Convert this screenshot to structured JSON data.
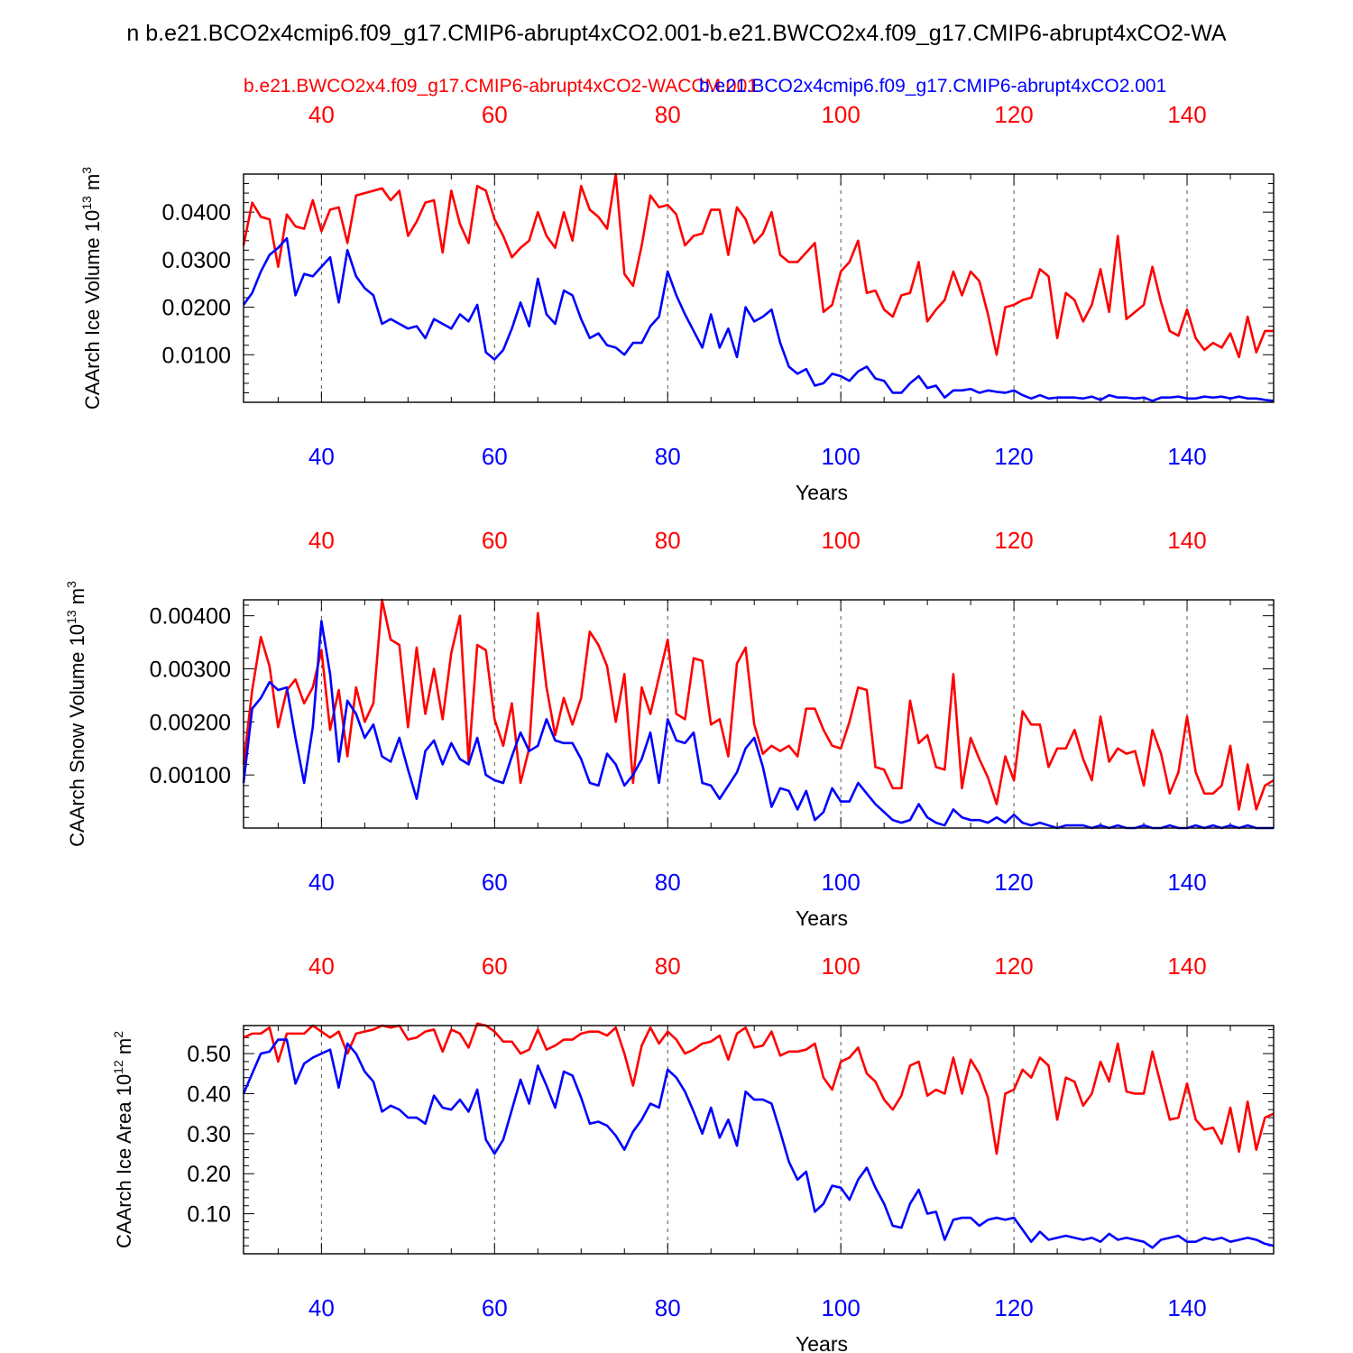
{
  "figure_title": "n b.e21.BCO2x4cmip6.f09_g17.CMIP6-abrupt4xCO2.001-b.e21.BWCO2x4.f09_g17.CMIP6-abrupt4xCO2-WA",
  "legend": {
    "red_label": "b.e21.BWCO2x4.f09_g17.CMIP6-abrupt4xCO2-WACCM.001",
    "blue_label": "b.e21.BCO2x4cmip6.f09_g17.CMIP6-abrupt4xCO2.001"
  },
  "colors": {
    "red": "#ff0000",
    "blue": "#0000ff",
    "axis": "#000000"
  },
  "chart_data": [
    {
      "type": "line",
      "title": "",
      "xlabel": "Years",
      "ylabel": "CAArch Ice Volume 10",
      "ylabel_exp": "13",
      "ylabel_unit": " m",
      "ylabel_unit_exp": "3",
      "xlim": [
        31,
        150
      ],
      "ylim": [
        0.0,
        0.048
      ],
      "xticks": [
        40,
        60,
        80,
        100,
        120,
        140
      ],
      "xtick_labels": [
        "40",
        "60",
        "80",
        "100",
        "120",
        "140"
      ],
      "yticks": [
        0.01,
        0.02,
        0.03,
        0.04
      ],
      "ytick_labels": [
        "0.0100",
        "0.0200",
        "0.0300",
        "0.0400"
      ],
      "grid": "vertical-dashed",
      "x_start": 31,
      "series": [
        {
          "name": "b.e21.BWCO2x4.f09_g17.CMIP6-abrupt4xCO2-WACCM.001",
          "color": "red",
          "values": [
            0.033,
            0.042,
            0.039,
            0.0385,
            0.0285,
            0.0395,
            0.037,
            0.0365,
            0.0425,
            0.036,
            0.0405,
            0.041,
            0.0335,
            0.0435,
            0.044,
            0.0445,
            0.045,
            0.0425,
            0.0445,
            0.035,
            0.038,
            0.042,
            0.0425,
            0.0315,
            0.0445,
            0.0375,
            0.0335,
            0.0455,
            0.0445,
            0.0385,
            0.035,
            0.0305,
            0.0325,
            0.034,
            0.04,
            0.035,
            0.0325,
            0.04,
            0.034,
            0.0455,
            0.0405,
            0.039,
            0.0365,
            0.048,
            0.027,
            0.0245,
            0.033,
            0.0435,
            0.041,
            0.0415,
            0.0395,
            0.033,
            0.035,
            0.0355,
            0.0405,
            0.0405,
            0.031,
            0.041,
            0.0385,
            0.0335,
            0.0355,
            0.04,
            0.031,
            0.0295,
            0.0295,
            0.0315,
            0.0335,
            0.019,
            0.0205,
            0.0275,
            0.0295,
            0.034,
            0.023,
            0.0235,
            0.0195,
            0.018,
            0.0225,
            0.023,
            0.0295,
            0.017,
            0.0195,
            0.0215,
            0.0275,
            0.0225,
            0.0275,
            0.0255,
            0.0185,
            0.01,
            0.02,
            0.0205,
            0.0215,
            0.022,
            0.028,
            0.0265,
            0.0135,
            0.023,
            0.0215,
            0.017,
            0.0205,
            0.028,
            0.019,
            0.035,
            0.0175,
            0.019,
            0.0205,
            0.0285,
            0.021,
            0.015,
            0.014,
            0.0195,
            0.0135,
            0.011,
            0.0125,
            0.0115,
            0.0145,
            0.0095,
            0.018,
            0.0105,
            0.015,
            0.015
          ]
        },
        {
          "name": "b.e21.BCO2x4cmip6.f09_g17.CMIP6-abrupt4xCO2.001",
          "color": "blue",
          "values": [
            0.0205,
            0.023,
            0.0275,
            0.031,
            0.0325,
            0.0345,
            0.0225,
            0.027,
            0.0265,
            0.0285,
            0.0305,
            0.021,
            0.032,
            0.0265,
            0.024,
            0.0225,
            0.0165,
            0.0175,
            0.0165,
            0.0155,
            0.016,
            0.0135,
            0.0175,
            0.0165,
            0.0155,
            0.0185,
            0.017,
            0.0205,
            0.0105,
            0.009,
            0.011,
            0.0155,
            0.021,
            0.016,
            0.026,
            0.0185,
            0.0165,
            0.0235,
            0.0225,
            0.0175,
            0.0135,
            0.0145,
            0.012,
            0.0115,
            0.01,
            0.0125,
            0.0125,
            0.016,
            0.018,
            0.0275,
            0.0225,
            0.0185,
            0.015,
            0.0115,
            0.0185,
            0.0115,
            0.0155,
            0.0095,
            0.02,
            0.017,
            0.018,
            0.0195,
            0.0125,
            0.0075,
            0.006,
            0.007,
            0.0035,
            0.004,
            0.006,
            0.0055,
            0.0045,
            0.0065,
            0.0075,
            0.005,
            0.0045,
            0.002,
            0.002,
            0.004,
            0.0055,
            0.003,
            0.0035,
            0.001,
            0.0025,
            0.0025,
            0.0028,
            0.002,
            0.0025,
            0.0022,
            0.002,
            0.0025,
            0.0015,
            0.0008,
            0.0015,
            0.0008,
            0.001,
            0.001,
            0.001,
            0.0008,
            0.0012,
            0.0005,
            0.0015,
            0.001,
            0.001,
            0.0008,
            0.001,
            0.0003,
            0.001,
            0.001,
            0.0012,
            0.0008,
            0.0008,
            0.0012,
            0.001,
            0.0012,
            0.0008,
            0.0012,
            0.0008,
            0.0008,
            0.0005,
            0.0003
          ]
        }
      ]
    },
    {
      "type": "line",
      "title": "",
      "xlabel": "Years",
      "ylabel": "CAArch Snow Volume 10",
      "ylabel_exp": "13",
      "ylabel_unit": " m",
      "ylabel_unit_exp": "3",
      "xlim": [
        31,
        150
      ],
      "ylim": [
        0.0,
        0.0043
      ],
      "xticks": [
        40,
        60,
        80,
        100,
        120,
        140
      ],
      "xtick_labels": [
        "40",
        "60",
        "80",
        "100",
        "120",
        "140"
      ],
      "yticks": [
        0.001,
        0.002,
        0.003,
        0.004
      ],
      "ytick_labels": [
        "0.00100",
        "0.00200",
        "0.00300",
        "0.00400"
      ],
      "grid": "vertical-dashed",
      "x_start": 31,
      "series": [
        {
          "name": "b.e21.BWCO2x4.f09_g17.CMIP6-abrupt4xCO2-WACCM.001",
          "color": "red",
          "values": [
            0.0012,
            0.0026,
            0.0036,
            0.00305,
            0.0019,
            0.0026,
            0.0028,
            0.00235,
            0.00265,
            0.00335,
            0.00185,
            0.0026,
            0.00135,
            0.00265,
            0.002,
            0.00235,
            0.0043,
            0.00355,
            0.00345,
            0.0019,
            0.0034,
            0.00215,
            0.003,
            0.00205,
            0.0033,
            0.004,
            0.00125,
            0.00345,
            0.00335,
            0.00205,
            0.00155,
            0.00235,
            0.00085,
            0.0015,
            0.00405,
            0.00265,
            0.00175,
            0.00245,
            0.00195,
            0.00245,
            0.0037,
            0.00345,
            0.00305,
            0.002,
            0.0029,
            0.00085,
            0.00265,
            0.00215,
            0.00285,
            0.00355,
            0.00215,
            0.00205,
            0.0032,
            0.00315,
            0.00195,
            0.00205,
            0.00135,
            0.0031,
            0.0034,
            0.00195,
            0.0014,
            0.00155,
            0.00145,
            0.00155,
            0.00135,
            0.00225,
            0.00225,
            0.00185,
            0.00155,
            0.0015,
            0.002,
            0.00265,
            0.0026,
            0.00115,
            0.0011,
            0.00075,
            0.00075,
            0.0024,
            0.0016,
            0.00175,
            0.00115,
            0.0011,
            0.0029,
            0.00075,
            0.0017,
            0.0013,
            0.00095,
            0.00045,
            0.00135,
            0.0009,
            0.0022,
            0.00195,
            0.00195,
            0.00115,
            0.0015,
            0.0015,
            0.00185,
            0.0013,
            0.0009,
            0.0021,
            0.00125,
            0.0015,
            0.0014,
            0.00145,
            0.0008,
            0.00185,
            0.0014,
            0.00065,
            0.00105,
            0.0021,
            0.00105,
            0.00065,
            0.00065,
            0.0008,
            0.00155,
            0.00035,
            0.0012,
            0.00035,
            0.0008,
            0.0009
          ]
        },
        {
          "name": "b.e21.BCO2x4cmip6.f09_g17.CMIP6-abrupt4xCO2.001",
          "color": "blue",
          "values": [
            0.00085,
            0.00225,
            0.00245,
            0.00275,
            0.0026,
            0.00265,
            0.0017,
            0.00085,
            0.0019,
            0.0039,
            0.0029,
            0.00125,
            0.0024,
            0.00215,
            0.0017,
            0.00195,
            0.00135,
            0.00125,
            0.0017,
            0.0011,
            0.00055,
            0.00145,
            0.00165,
            0.0012,
            0.0016,
            0.0013,
            0.0012,
            0.0017,
            0.001,
            0.0009,
            0.00085,
            0.00135,
            0.0018,
            0.00145,
            0.00155,
            0.00205,
            0.00165,
            0.0016,
            0.0016,
            0.0013,
            0.00085,
            0.0008,
            0.0014,
            0.0012,
            0.0008,
            0.001,
            0.0013,
            0.0018,
            0.00085,
            0.00205,
            0.00165,
            0.0016,
            0.0018,
            0.00085,
            0.0008,
            0.00055,
            0.0008,
            0.00105,
            0.0015,
            0.0017,
            0.00115,
            0.0004,
            0.00075,
            0.0007,
            0.00035,
            0.0007,
            0.00015,
            0.0003,
            0.00075,
            0.0005,
            0.0005,
            0.00085,
            0.00065,
            0.00045,
            0.0003,
            0.00015,
            0.0001,
            0.00015,
            0.00045,
            0.0002,
            0.0001,
            5e-05,
            0.00035,
            0.0002,
            0.00015,
            0.00015,
            0.0001,
            0.0002,
            0.0001,
            0.00025,
            0.0001,
            5e-05,
            0.0001,
            5e-05,
            0.0,
            5e-05,
            5e-05,
            5e-05,
            0.0,
            5e-05,
            0.0,
            5e-05,
            0.0,
            0.0,
            5e-05,
            0.0,
            0.0,
            5e-05,
            0.0,
            0.0,
            5e-05,
            0.0,
            5e-05,
            0.0,
            5e-05,
            0.0,
            5e-05,
            0.0,
            0.0,
            0.0
          ]
        }
      ]
    },
    {
      "type": "line",
      "title": "",
      "xlabel": "Years",
      "ylabel": "CAArch Ice Area 10",
      "ylabel_exp": "12",
      "ylabel_unit": " m",
      "ylabel_unit_exp": "2",
      "xlim": [
        31,
        150
      ],
      "ylim": [
        0.0,
        0.57
      ],
      "xticks": [
        40,
        60,
        80,
        100,
        120,
        140
      ],
      "xtick_labels": [
        "40",
        "60",
        "80",
        "100",
        "120",
        "140"
      ],
      "yticks": [
        0.1,
        0.2,
        0.3,
        0.4,
        0.5
      ],
      "ytick_labels": [
        "0.10",
        "0.20",
        "0.30",
        "0.40",
        "0.50"
      ],
      "grid": "vertical-dashed",
      "x_start": 31,
      "series": [
        {
          "name": "b.e21.BWCO2x4.f09_g17.CMIP6-abrupt4xCO2-WACCM.001",
          "color": "red",
          "values": [
            0.54,
            0.55,
            0.55,
            0.565,
            0.48,
            0.55,
            0.55,
            0.55,
            0.57,
            0.555,
            0.54,
            0.555,
            0.5,
            0.55,
            0.555,
            0.56,
            0.57,
            0.565,
            0.57,
            0.535,
            0.54,
            0.555,
            0.56,
            0.505,
            0.56,
            0.55,
            0.515,
            0.575,
            0.57,
            0.555,
            0.53,
            0.53,
            0.5,
            0.51,
            0.56,
            0.51,
            0.52,
            0.535,
            0.535,
            0.55,
            0.555,
            0.555,
            0.545,
            0.565,
            0.5,
            0.42,
            0.52,
            0.565,
            0.525,
            0.555,
            0.535,
            0.5,
            0.51,
            0.525,
            0.53,
            0.545,
            0.485,
            0.55,
            0.565,
            0.515,
            0.52,
            0.555,
            0.495,
            0.505,
            0.505,
            0.51,
            0.525,
            0.44,
            0.41,
            0.48,
            0.49,
            0.515,
            0.45,
            0.43,
            0.385,
            0.36,
            0.395,
            0.47,
            0.48,
            0.395,
            0.41,
            0.4,
            0.49,
            0.4,
            0.485,
            0.45,
            0.39,
            0.25,
            0.4,
            0.41,
            0.46,
            0.44,
            0.49,
            0.47,
            0.335,
            0.44,
            0.43,
            0.37,
            0.4,
            0.48,
            0.43,
            0.525,
            0.405,
            0.4,
            0.4,
            0.505,
            0.42,
            0.335,
            0.34,
            0.425,
            0.335,
            0.31,
            0.315,
            0.275,
            0.365,
            0.255,
            0.38,
            0.26,
            0.34,
            0.35
          ]
        },
        {
          "name": "b.e21.BCO2x4cmip6.f09_g17.CMIP6-abrupt4xCO2.001",
          "color": "blue",
          "values": [
            0.4,
            0.45,
            0.5,
            0.505,
            0.535,
            0.535,
            0.425,
            0.475,
            0.49,
            0.5,
            0.51,
            0.415,
            0.525,
            0.5,
            0.455,
            0.43,
            0.355,
            0.37,
            0.36,
            0.34,
            0.34,
            0.325,
            0.395,
            0.365,
            0.36,
            0.385,
            0.355,
            0.41,
            0.285,
            0.25,
            0.285,
            0.36,
            0.435,
            0.375,
            0.47,
            0.42,
            0.365,
            0.455,
            0.445,
            0.39,
            0.325,
            0.33,
            0.32,
            0.295,
            0.26,
            0.305,
            0.335,
            0.375,
            0.365,
            0.46,
            0.44,
            0.405,
            0.355,
            0.3,
            0.365,
            0.29,
            0.335,
            0.27,
            0.405,
            0.385,
            0.385,
            0.375,
            0.305,
            0.23,
            0.185,
            0.205,
            0.105,
            0.125,
            0.17,
            0.165,
            0.135,
            0.185,
            0.215,
            0.165,
            0.125,
            0.07,
            0.065,
            0.125,
            0.16,
            0.1,
            0.105,
            0.035,
            0.085,
            0.09,
            0.09,
            0.07,
            0.085,
            0.09,
            0.085,
            0.09,
            0.06,
            0.03,
            0.055,
            0.035,
            0.04,
            0.045,
            0.04,
            0.035,
            0.04,
            0.03,
            0.05,
            0.035,
            0.04,
            0.035,
            0.03,
            0.015,
            0.035,
            0.04,
            0.045,
            0.03,
            0.03,
            0.04,
            0.035,
            0.04,
            0.03,
            0.035,
            0.04,
            0.035,
            0.025,
            0.02
          ]
        }
      ]
    }
  ]
}
